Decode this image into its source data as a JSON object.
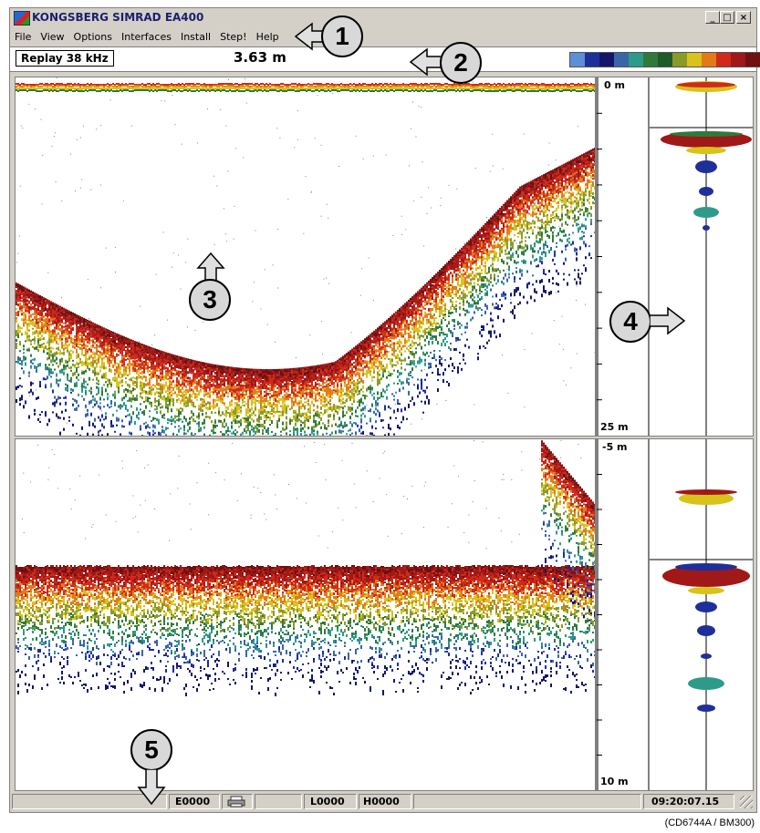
{
  "window": {
    "title": "KONGSBERG SIMRAD EA400",
    "controls": {
      "minimize": "_",
      "maximize": "□",
      "close": "×"
    }
  },
  "menu": [
    "File",
    "View",
    "Options",
    "Interfaces",
    "Install",
    "Step!",
    "Help"
  ],
  "status_row": {
    "frequency_label": "Replay 38 kHz",
    "depth_readout": "3.63 m",
    "color_scale": [
      "#5b8fd6",
      "#1f2f9a",
      "#13166a",
      "#3a66a8",
      "#2e9a8a",
      "#2f7a3a",
      "#1f5a2a",
      "#8a9a2a",
      "#d9c21a",
      "#e37a1a",
      "#d02a1a",
      "#a01818",
      "#701010"
    ]
  },
  "upper_echogram": {
    "depth_top": "0 m",
    "depth_bottom": "25 m"
  },
  "lower_echogram": {
    "depth_top": "-5 m",
    "depth_bottom": "10 m"
  },
  "status_bar": {
    "field_e": "E0000",
    "printer_icon": "printer-icon",
    "field_l": "L0000",
    "field_h": "H0000",
    "time": "09:20:07.15"
  },
  "callouts": [
    "1",
    "2",
    "3",
    "4",
    "5"
  ],
  "caption": "(CD6744A / BM300)"
}
